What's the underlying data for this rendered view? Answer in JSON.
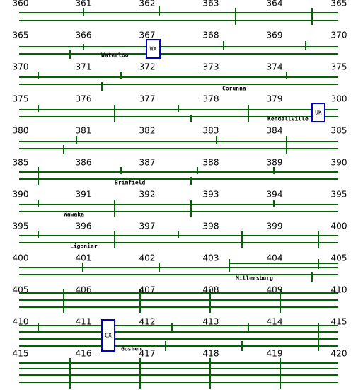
{
  "rows": [
    {
      "mileposts": [
        360,
        361,
        362,
        363,
        364,
        365
      ]
    },
    {
      "mileposts": [
        365,
        366,
        367,
        368,
        369,
        370
      ]
    },
    {
      "mileposts": [
        370,
        371,
        372,
        373,
        374,
        375
      ]
    },
    {
      "mileposts": [
        375,
        376,
        377,
        378,
        379,
        380
      ]
    },
    {
      "mileposts": [
        380,
        381,
        382,
        383,
        384,
        385
      ]
    },
    {
      "mileposts": [
        385,
        386,
        387,
        388,
        389,
        390
      ]
    },
    {
      "mileposts": [
        390,
        391,
        392,
        393,
        394,
        395
      ]
    },
    {
      "mileposts": [
        395,
        396,
        397,
        398,
        399,
        400
      ]
    },
    {
      "mileposts": [
        400,
        401,
        402,
        403,
        404,
        405
      ]
    },
    {
      "mileposts": [
        405,
        406,
        407,
        408,
        409,
        410
      ]
    },
    {
      "mileposts": [
        410,
        411,
        412,
        413,
        414,
        415
      ]
    },
    {
      "mileposts": [
        415,
        416,
        417,
        418,
        419,
        420
      ]
    }
  ],
  "stations": [
    "Waterloo",
    "Corunna",
    "Kendallville",
    "Brimfield",
    "Wawaka",
    "Ligonier",
    "Millersburg",
    "Goshen"
  ],
  "signal_boxes": [
    "WX",
    "UK",
    "CX"
  ]
}
